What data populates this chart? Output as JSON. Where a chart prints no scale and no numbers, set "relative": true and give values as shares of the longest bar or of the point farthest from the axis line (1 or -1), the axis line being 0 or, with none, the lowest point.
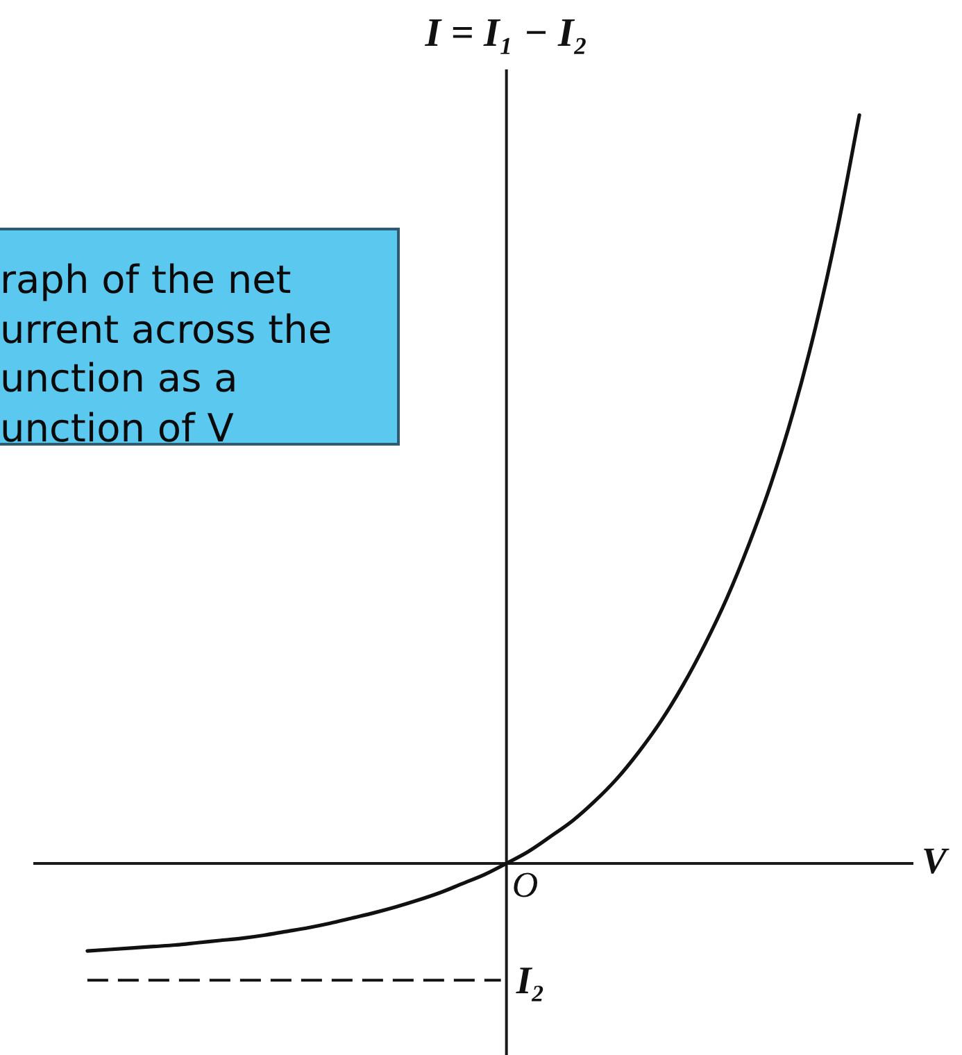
{
  "chart_data": {
    "type": "line",
    "relative": true,
    "categories": [
      null,
      null,
      null,
      null,
      null,
      null,
      null,
      null,
      null,
      null,
      null,
      null,
      null,
      null,
      null,
      null,
      null,
      null,
      null,
      null,
      null,
      null,
      null,
      null,
      null,
      null,
      null,
      null,
      null,
      null,
      null,
      null,
      null,
      null,
      null,
      null
    ],
    "series": [
      {
        "color": "#111111",
        "values": [
          -0.117,
          -0.115,
          -0.113,
          -0.111,
          -0.109,
          -0.106,
          -0.103,
          -0.1,
          -0.096,
          -0.091,
          -0.086,
          -0.08,
          -0.073,
          -0.066,
          -0.058,
          -0.049,
          -0.039,
          -0.027,
          -0.015,
          0,
          0.016,
          0.036,
          0.057,
          0.083,
          0.113,
          0.149,
          0.19,
          0.238,
          0.293,
          0.355,
          0.427,
          0.508,
          0.603,
          0.715,
          0.847,
          1
        ]
      }
    ],
    "xlabel": "V",
    "ylabel": "I = I₁ − I₂",
    "ref_lines": [
      {
        "axis": "y",
        "value": -0.156,
        "label": "I₂",
        "line_style": "dashed",
        "color": "#111111"
      }
    ],
    "annotations": [
      "raph of the net\nurrent across the\nunction as a\nunction of V",
      {
        "text": "O",
        "y": 0
      }
    ],
    "tick_labels": false,
    "marker": "none",
    "line_style": "solid"
  }
}
